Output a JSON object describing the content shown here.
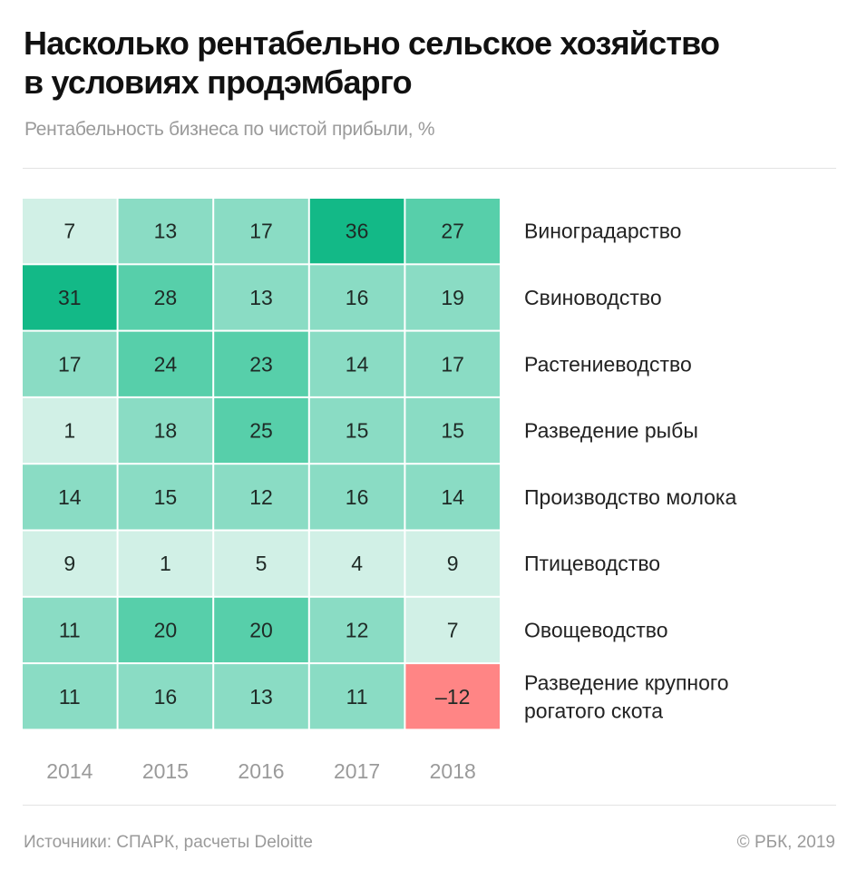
{
  "header": {
    "title_line1": "Насколько рентабельно сельское хозяйство",
    "title_line2": "в условиях продэмбарго",
    "subtitle": "Рентабельность бизнеса по чистой прибыли, %"
  },
  "footer": {
    "source": "Источники: СПАРК, расчеты Deloitte",
    "copyright": "© РБК, 2019"
  },
  "colors": {
    "very_light": "#d1f0e6",
    "light": "#8adcc4",
    "medium": "#57cfaa",
    "dark": "#13b987",
    "negative": "#ff8585",
    "cell_text": "#1f2a26",
    "year_text": "#9a9a9a",
    "row_label": "#222222"
  },
  "chart_data": {
    "type": "heatmap",
    "title": "Насколько рентабельно сельское хозяйство в условиях продэмбарго",
    "subtitle": "Рентабельность бизнеса по чистой прибыли, %",
    "x": [
      "2014",
      "2015",
      "2016",
      "2017",
      "2018"
    ],
    "rows": [
      {
        "label": [
          "Виноградарство"
        ],
        "values": [
          7,
          13,
          17,
          36,
          27
        ],
        "display": [
          "7",
          "13",
          "17",
          "36",
          "27"
        ]
      },
      {
        "label": [
          "Свиноводство"
        ],
        "values": [
          31,
          28,
          13,
          16,
          19
        ],
        "display": [
          "31",
          "28",
          "13",
          "16",
          "19"
        ]
      },
      {
        "label": [
          "Растениеводство"
        ],
        "values": [
          17,
          24,
          23,
          14,
          17
        ],
        "display": [
          "17",
          "24",
          "23",
          "14",
          "17"
        ]
      },
      {
        "label": [
          "Разведение рыбы"
        ],
        "values": [
          1,
          18,
          25,
          15,
          15
        ],
        "display": [
          "1",
          "18",
          "25",
          "15",
          "15"
        ]
      },
      {
        "label": [
          "Производство молока"
        ],
        "values": [
          14,
          15,
          12,
          16,
          14
        ],
        "display": [
          "14",
          "15",
          "12",
          "16",
          "14"
        ]
      },
      {
        "label": [
          "Птицеводство"
        ],
        "values": [
          9,
          1,
          5,
          4,
          9
        ],
        "display": [
          "9",
          "1",
          "5",
          "4",
          "9"
        ]
      },
      {
        "label": [
          "Овощеводство"
        ],
        "values": [
          11,
          20,
          20,
          12,
          7
        ],
        "display": [
          "11",
          "20",
          "20",
          "12",
          "7"
        ]
      },
      {
        "label": [
          "Разведение крупного",
          "рогатого скота"
        ],
        "values": [
          11,
          16,
          13,
          11,
          -12
        ],
        "display": [
          "11",
          "16",
          "13",
          "11",
          "–12"
        ]
      }
    ],
    "color_bins": [
      {
        "range": "< 0",
        "color": "#ff8585"
      },
      {
        "range": "0–9",
        "color": "#d1f0e6"
      },
      {
        "range": "10–19",
        "color": "#8adcc4"
      },
      {
        "range": "20–29",
        "color": "#57cfaa"
      },
      {
        "range": "30+",
        "color": "#13b987"
      }
    ],
    "legend": "none",
    "grid": false
  }
}
